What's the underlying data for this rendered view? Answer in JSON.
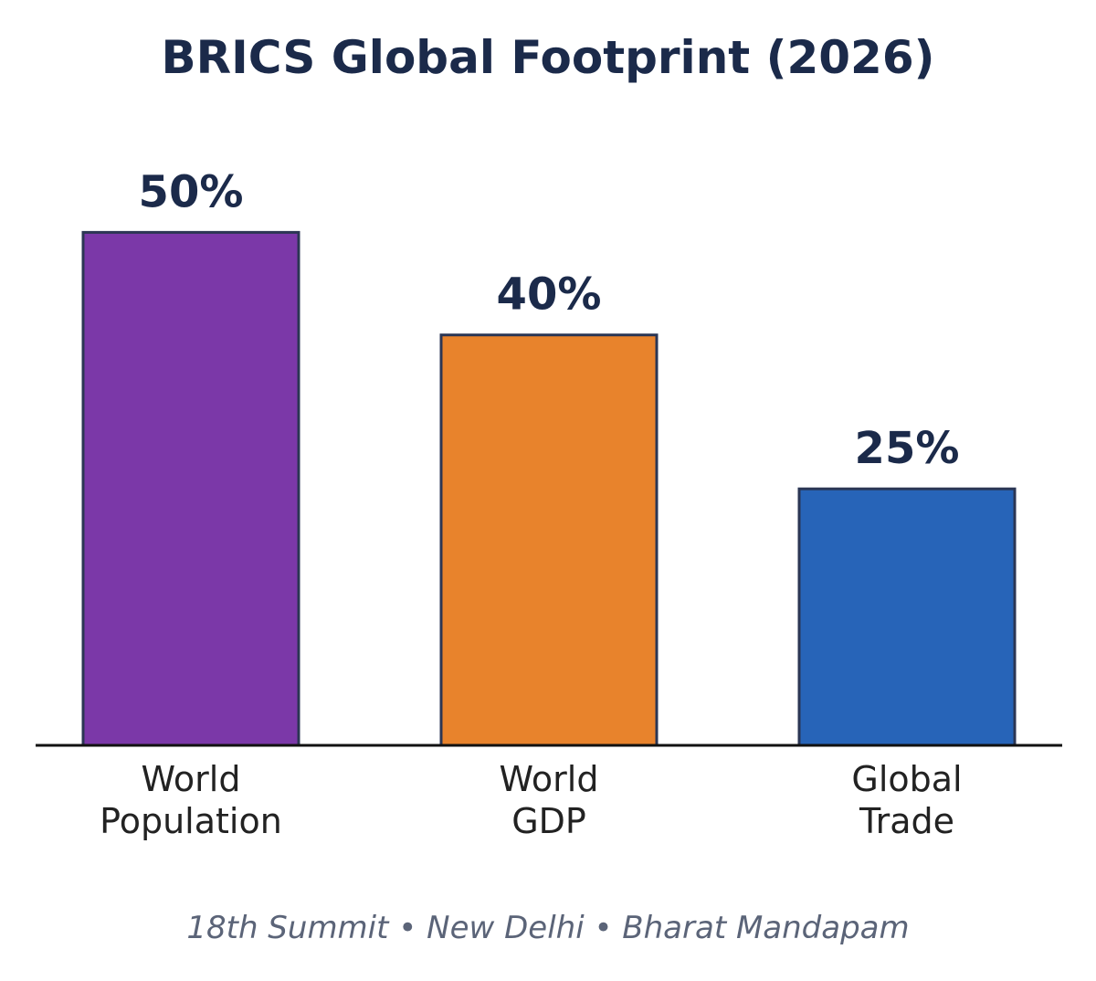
{
  "chart_data": {
    "type": "bar",
    "title": "BRICS Global Footprint (2026)",
    "categories": [
      [
        "World",
        "Population"
      ],
      [
        "World",
        "GDP"
      ],
      [
        "Global",
        "Trade"
      ]
    ],
    "values": [
      50,
      40,
      25
    ],
    "value_labels": [
      "50%",
      "40%",
      "25%"
    ],
    "colors": [
      "#7b38a8",
      "#e8832c",
      "#2764b8"
    ],
    "bar_outline_color": "#2b3654",
    "ylim": [
      0,
      56
    ],
    "grid": false,
    "legend": "none",
    "xlabel": "",
    "ylabel": ""
  },
  "footer": {
    "text": "18th Summit • New Delhi • Bharat Mandapam"
  }
}
